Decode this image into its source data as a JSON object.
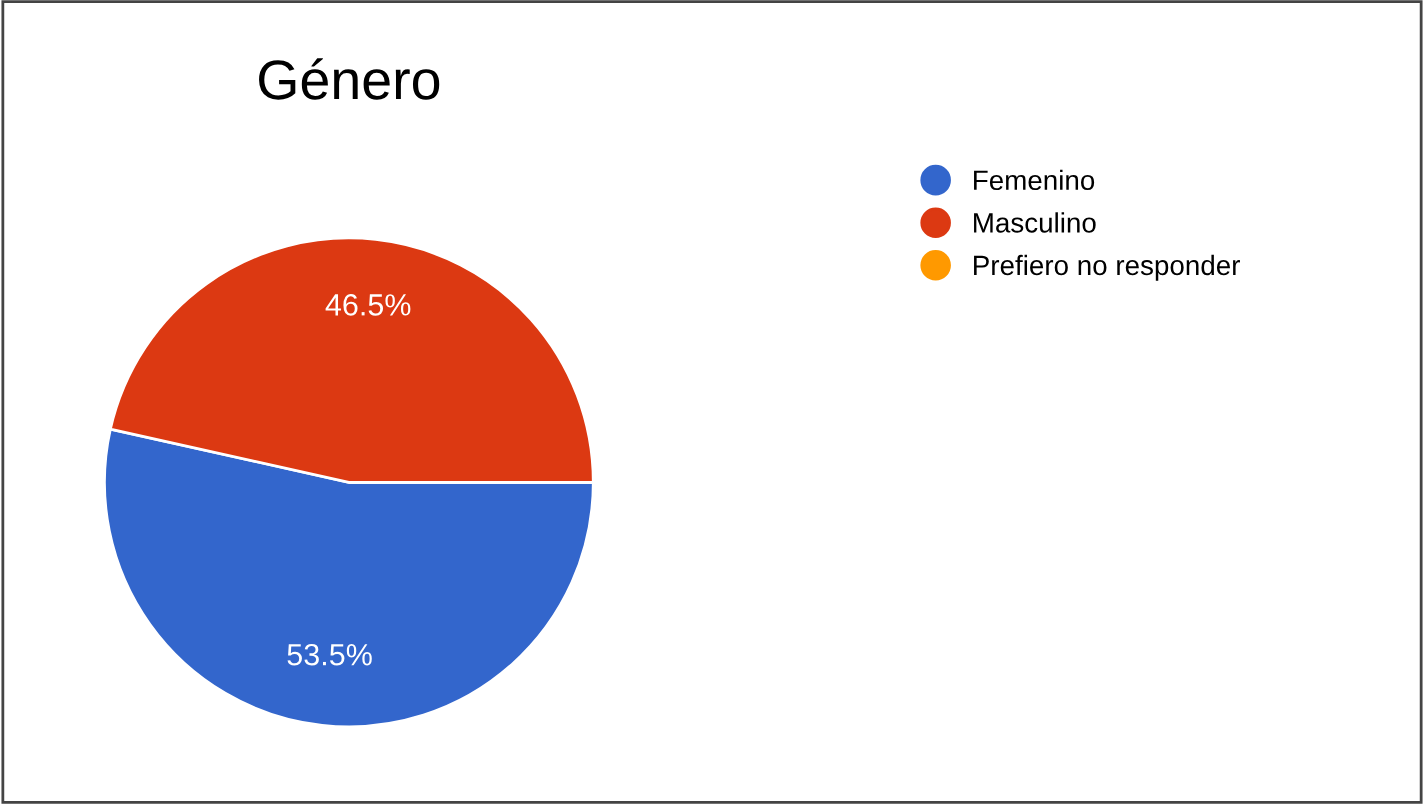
{
  "chart_data": {
    "type": "pie",
    "title": "Género",
    "categories": [
      "Femenino",
      "Masculino",
      "Prefiero no responder"
    ],
    "values": [
      53.5,
      46.5,
      0
    ],
    "colors": [
      "#3366cc",
      "#dc3912",
      "#ff9900"
    ],
    "value_labels": [
      "53.5%",
      "46.5%",
      null
    ],
    "legend": "top right"
  }
}
